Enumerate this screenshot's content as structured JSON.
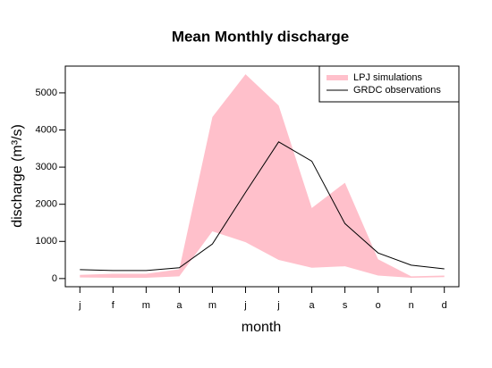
{
  "chart_data": {
    "type": "band-line",
    "title": "Mean Monthly discharge",
    "xlabel": "month",
    "ylabel": "discharge (m³/s)",
    "categories": [
      "j",
      "f",
      "m",
      "a",
      "m",
      "j",
      "j",
      "a",
      "s",
      "o",
      "n",
      "d"
    ],
    "series": [
      {
        "name": "LPJ simulations",
        "kind": "band",
        "color": "#ffc0cb",
        "high": [
          100,
          130,
          130,
          250,
          4350,
          5500,
          4660,
          1900,
          2580,
          520,
          60,
          80
        ],
        "low": [
          30,
          20,
          20,
          60,
          1270,
          980,
          500,
          290,
          330,
          80,
          20,
          40
        ]
      },
      {
        "name": "GRDC observations",
        "kind": "line",
        "color": "#000000",
        "values": [
          240,
          215,
          215,
          290,
          930,
          2320,
          3680,
          3160,
          1480,
          690,
          360,
          260
        ]
      }
    ],
    "ylim": [
      -220,
      5720
    ],
    "yticks": [
      0,
      1000,
      2000,
      3000,
      4000,
      5000
    ],
    "legend": "top-right"
  }
}
